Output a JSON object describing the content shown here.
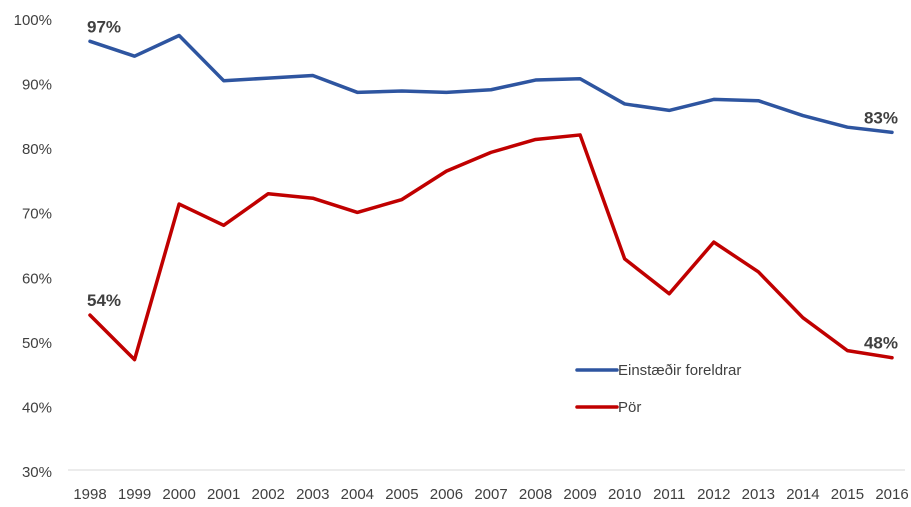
{
  "chart_data": {
    "type": "line",
    "title": "",
    "xlabel": "",
    "ylabel": "",
    "x": [
      "1998",
      "1999",
      "2000",
      "2001",
      "2002",
      "2003",
      "2004",
      "2005",
      "2006",
      "2007",
      "2008",
      "2009",
      "2010",
      "2011",
      "2012",
      "2013",
      "2014",
      "2015",
      "2016"
    ],
    "ylim": [
      30,
      100
    ],
    "yticks": [
      "30%",
      "40%",
      "50%",
      "60%",
      "70%",
      "80%",
      "90%",
      "100%"
    ],
    "grid": false,
    "legend_position": "right",
    "series": [
      {
        "name": "Einstæðir foreldrar",
        "color": "#2E55A0",
        "values": [
          96.7,
          94.4,
          97.6,
          90.6,
          91.0,
          91.4,
          88.8,
          89.0,
          88.8,
          89.2,
          90.7,
          90.9,
          87.0,
          86.0,
          87.7,
          87.5,
          85.2,
          83.4,
          82.6
        ],
        "labels": [
          {
            "index": 0,
            "text": "97%"
          },
          {
            "index": 18,
            "text": "83%"
          }
        ]
      },
      {
        "name": "Pör",
        "color": "#C00000",
        "values": [
          54.3,
          47.4,
          71.5,
          68.2,
          73.1,
          72.4,
          70.2,
          72.2,
          76.6,
          79.5,
          81.5,
          82.2,
          63.0,
          57.6,
          65.6,
          61.0,
          53.9,
          48.8,
          47.7
        ],
        "labels": [
          {
            "index": 0,
            "text": "54%"
          },
          {
            "index": 18,
            "text": "48%"
          }
        ]
      }
    ]
  }
}
